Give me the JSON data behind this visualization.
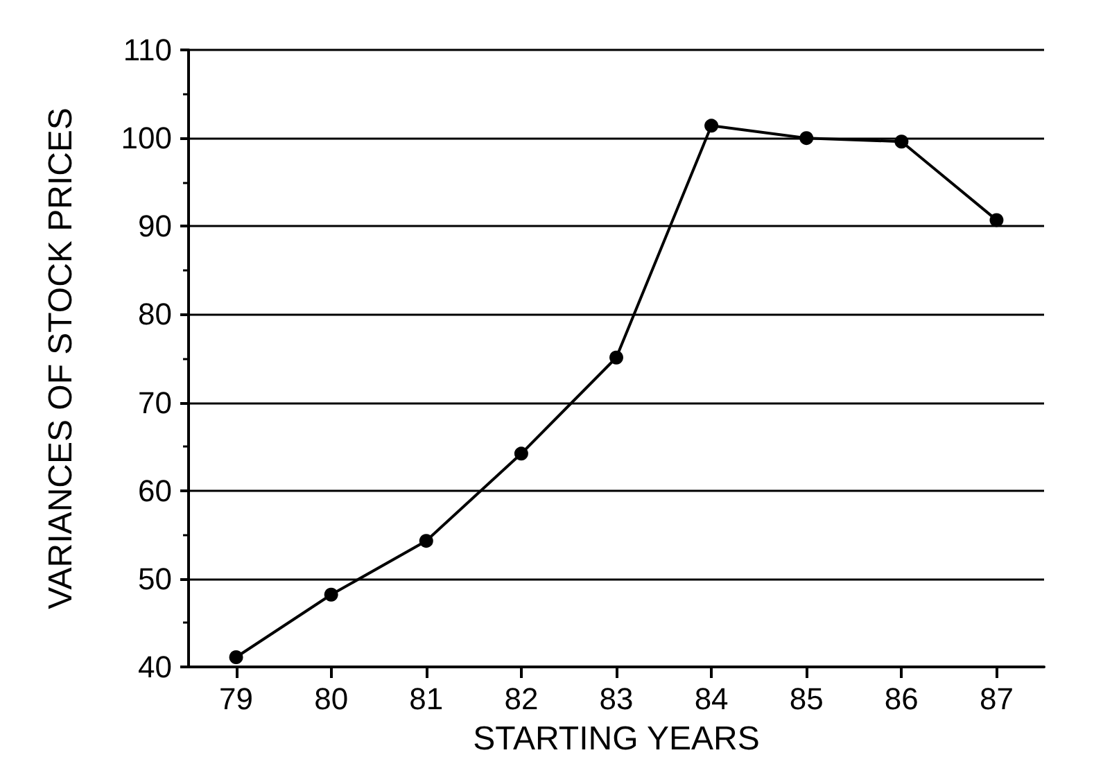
{
  "chart_data": {
    "type": "line",
    "xlabel": "STARTING YEARS",
    "ylabel": "VARIANCES OF STOCK PRICES",
    "categories": [
      "79",
      "80",
      "81",
      "82",
      "83",
      "84",
      "85",
      "86",
      "87"
    ],
    "series": [
      {
        "color": "#000000",
        "values": [
          41.1,
          48.2,
          54.3,
          64.2,
          75.1,
          101.4,
          100,
          99.6,
          90.7
        ]
      }
    ],
    "ylim": [
      40,
      110
    ],
    "yticks": [
      40,
      50,
      60,
      70,
      80,
      90,
      100,
      110
    ],
    "grid": "y",
    "marker": "circle",
    "line_style": "solid"
  }
}
